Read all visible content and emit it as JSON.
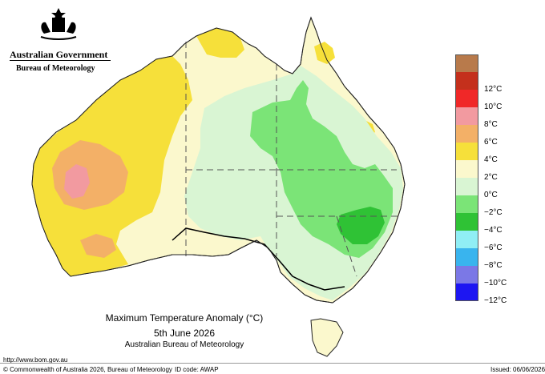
{
  "header": {
    "government": "Australian Government",
    "agency": "Bureau of Meteorology"
  },
  "map": {
    "title": "Maximum Temperature Anomaly (°C)",
    "date": "5th June 2026",
    "credit": "Australian Bureau of Meteorology"
  },
  "legend": {
    "items": [
      {
        "label": "",
        "color": "#b87a4b"
      },
      {
        "label": "12°C",
        "color": "#c4301c"
      },
      {
        "label": "10°C",
        "color": "#f02828"
      },
      {
        "label": "8°C",
        "color": "#f29aa0"
      },
      {
        "label": "6°C",
        "color": "#f3b067"
      },
      {
        "label": "4°C",
        "color": "#f6e03a"
      },
      {
        "label": "2°C",
        "color": "#fbf8cd"
      },
      {
        "label": "0°C",
        "color": "#d9f5d3"
      },
      {
        "label": "−2°C",
        "color": "#7be477"
      },
      {
        "label": "−4°C",
        "color": "#2fc235"
      },
      {
        "label": "−6°C",
        "color": "#90eef5"
      },
      {
        "label": "−8°C",
        "color": "#39b4ee"
      },
      {
        "label": "−10°C",
        "color": "#7b78e6"
      },
      {
        "label": "−12°C",
        "color": "#1d16f2"
      }
    ]
  },
  "footer": {
    "url": "http://www.bom.gov.au",
    "copyright": "© Commonwealth of Australia 2026, Bureau of Meteorology",
    "idcode": "ID code: AWAP",
    "issued": "Issued: 06/06/2026"
  }
}
